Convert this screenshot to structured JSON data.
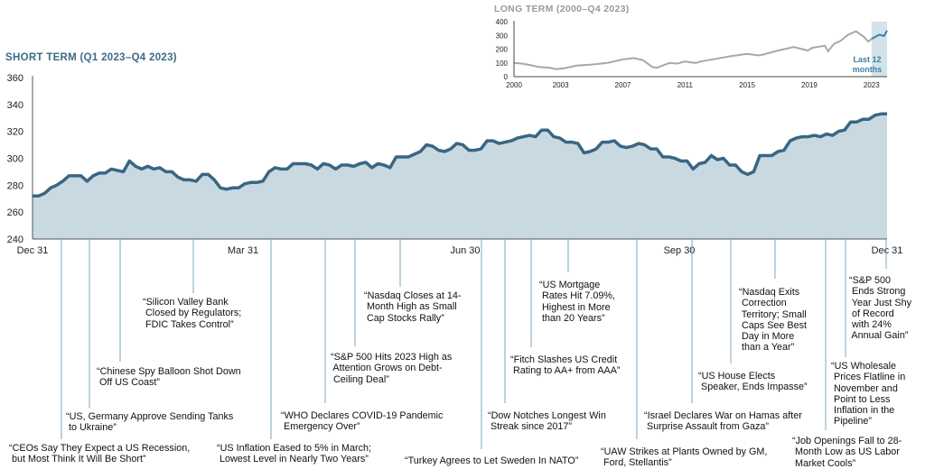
{
  "chart_data": [
    {
      "type": "area",
      "title": "SHORT TERM (Q1 2023–Q4 2023)",
      "ylim": [
        240,
        360
      ],
      "yticks": [
        "240",
        "260",
        "280",
        "300",
        "320",
        "340",
        "360"
      ],
      "xticks": [
        "Dec 31",
        "Mar 31",
        "Jun 30",
        "Sep 30",
        "Dec 31"
      ],
      "line_color": "#3a6683",
      "fill_color": "#c9d9e2",
      "values": [
        272,
        272,
        274,
        278,
        280,
        283,
        287,
        287,
        287,
        283,
        287,
        289,
        289,
        292,
        291,
        290,
        298,
        294,
        292,
        294,
        292,
        293,
        290,
        290,
        286,
        284,
        284,
        283,
        288,
        288,
        284,
        278,
        277,
        278,
        278,
        281,
        282,
        282,
        283,
        290,
        293,
        292,
        292,
        296,
        296,
        296,
        295,
        292,
        296,
        295,
        292,
        295,
        295,
        294,
        296,
        297,
        293,
        296,
        295,
        293,
        301,
        301,
        301,
        303,
        305,
        310,
        309,
        306,
        305,
        307,
        311,
        310,
        306,
        306,
        307,
        313,
        313,
        311,
        312,
        313,
        315,
        316,
        317,
        316,
        321,
        321,
        316,
        315,
        312,
        312,
        311,
        304,
        305,
        307,
        312,
        312,
        313,
        309,
        308,
        309,
        311,
        310,
        307,
        307,
        301,
        301,
        300,
        298,
        298,
        292,
        296,
        297,
        302,
        299,
        300,
        295,
        295,
        290,
        288,
        290,
        302,
        302,
        302,
        305,
        306,
        313,
        315,
        316,
        316,
        317,
        316,
        318,
        317,
        320,
        321,
        327,
        327,
        329,
        329,
        332,
        333,
        333
      ]
    },
    {
      "type": "line",
      "title": "LONG TERM (2000–Q4 2023)",
      "ylim": [
        0,
        400
      ],
      "xlim": [
        2000,
        2024
      ],
      "yticks": [
        "0",
        "100",
        "200",
        "300",
        "400"
      ],
      "xticks": [
        "2000",
        "2003",
        "2007",
        "2011",
        "2015",
        "2019",
        "2023"
      ],
      "highlight_label": "Last 12\nmonths",
      "line_color": "#a8a8a8",
      "highlight_color": "#3f7fa3",
      "points": [
        [
          2000,
          100
        ],
        [
          2000.5,
          95
        ],
        [
          2001,
          85
        ],
        [
          2001.6,
          70
        ],
        [
          2002.3,
          65
        ],
        [
          2002.7,
          55
        ],
        [
          2003.2,
          60
        ],
        [
          2004,
          80
        ],
        [
          2005,
          88
        ],
        [
          2006,
          100
        ],
        [
          2007,
          125
        ],
        [
          2007.7,
          135
        ],
        [
          2008.3,
          120
        ],
        [
          2008.9,
          70
        ],
        [
          2009.2,
          65
        ],
        [
          2010,
          100
        ],
        [
          2010.5,
          95
        ],
        [
          2011,
          110
        ],
        [
          2011.7,
          100
        ],
        [
          2012,
          110
        ],
        [
          2013,
          130
        ],
        [
          2014,
          150
        ],
        [
          2015,
          165
        ],
        [
          2015.7,
          155
        ],
        [
          2016,
          160
        ],
        [
          2017,
          190
        ],
        [
          2018,
          215
        ],
        [
          2018.9,
          190
        ],
        [
          2019.2,
          210
        ],
        [
          2020,
          225
        ],
        [
          2020.2,
          185
        ],
        [
          2020.6,
          240
        ],
        [
          2021,
          260
        ],
        [
          2021.5,
          305
        ],
        [
          2022,
          330
        ],
        [
          2022.5,
          290
        ],
        [
          2022.8,
          255
        ],
        [
          2023,
          275
        ],
        [
          2023.5,
          305
        ],
        [
          2023.8,
          295
        ],
        [
          2024,
          335
        ]
      ]
    }
  ],
  "annotations": [
    "“CEOs Say They Expect a US Recession,\n but Most Think It Will Be Short”",
    "“US, Germany Approve Sending Tanks\n to Ukraine”",
    "“Chinese Spy Balloon Shot Down\n Off US Coast”",
    "“Silicon Valley Bank\n Closed by Regulators;\n FDIC Takes Control”",
    "“US Inflation Eased to 5% in March;\n Lowest Level in Nearly Two Years”",
    "“WHO Declares COVID-19 Pandemic\n Emergency Over”",
    "“S&P 500 Hits 2023 High as\n Attention Grows on Debt-\n Ceiling Deal”",
    "“Nasdaq Closes at 14-\n Month High as Small\n Cap Stocks Rally”",
    "“Turkey Agrees to Let Sweden In NATO”",
    "“Dow Notches Longest Win\n Streak since 2017”",
    "“Fitch Slashes US Credit\n Rating to AA+ from AAA”",
    "“US Mortgage\n Rates Hit 7.09%,\n Highest in More\n than 20 Years”",
    "“UAW Strikes at Plants Owned by GM,\n Ford, Stellantis”",
    "“Israel Declares War on Hamas after\n Surprise Assault from Gaza”",
    "“US House Elects\n Speaker, Ends Impasse”",
    "“Nasdaq Exits\n Correction\n Territory; Small\n Caps See Best\n Day in More\n than a Year”",
    "“Job Openings Fall to 28-\n Month Low as US Labor\n Market Cools”",
    "“US Wholesale\n Prices Flatline in\n November and\n Point to Less\n Inflation in the\n Pipeline”",
    "“S&P 500\n Ends Strong\n Year Just Shy\n of Record\n with 24%\n Annual Gain”"
  ]
}
